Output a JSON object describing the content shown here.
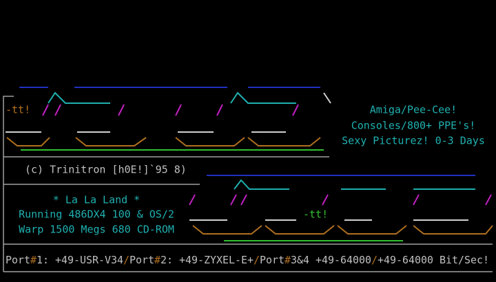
{
  "info": {
    "lines": [
      "Amiga/Pee-Cee!",
      "Consoles/800+ PPE's!",
      "Sexy Picturez! 0-3 Days"
    ]
  },
  "credit": "(c) Trinitron [h0E!]`95 8)",
  "board": {
    "name": "* La La Land *",
    "lines": [
      "Running 486DX4 100 & OS/2",
      "Warp 1500 Megs 680 CD-ROM"
    ]
  },
  "logo_tags": [
    "-tt!",
    "-tt!"
  ],
  "footer": [
    "Port",
    "#",
    "1: +49-USR-V34",
    "/",
    "Port",
    "#",
    "2: +49-ZYXEL-E+",
    "/",
    "Port",
    "#",
    "3&4 +49-64000",
    "/",
    "+49-64000 Bit/Sec!"
  ]
}
